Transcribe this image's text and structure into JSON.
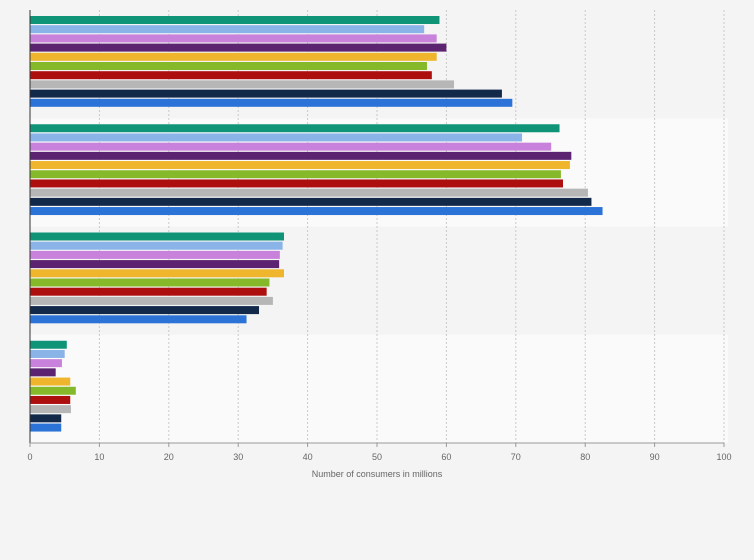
{
  "chart_data": {
    "type": "bar",
    "orientation": "horizontal",
    "xlabel": "Number of consumers in millions",
    "ylabel": "",
    "xlim": [
      0,
      100
    ],
    "xticks": [
      0,
      10,
      20,
      30,
      40,
      50,
      60,
      70,
      80,
      90,
      100
    ],
    "grid": true,
    "categories": [
      "",
      "",
      "",
      ""
    ],
    "series": [
      {
        "color": "#0f9478",
        "values": [
          59.0,
          76.3,
          36.6,
          5.3
        ]
      },
      {
        "color": "#8ab3e8",
        "values": [
          56.8,
          70.9,
          36.4,
          5.0
        ]
      },
      {
        "color": "#c882db",
        "values": [
          58.6,
          75.1,
          36.0,
          4.6
        ]
      },
      {
        "color": "#5c2370",
        "values": [
          60.0,
          78.0,
          35.9,
          3.7
        ]
      },
      {
        "color": "#efb52c",
        "values": [
          58.6,
          77.8,
          36.6,
          5.8
        ]
      },
      {
        "color": "#85b929",
        "values": [
          57.2,
          76.5,
          34.5,
          6.6
        ]
      },
      {
        "color": "#ad0f0f",
        "values": [
          57.9,
          76.8,
          34.1,
          5.8
        ]
      },
      {
        "color": "#b6b6b6",
        "values": [
          61.1,
          80.4,
          35.0,
          5.9
        ]
      },
      {
        "color": "#12294a",
        "values": [
          68.0,
          80.9,
          33.0,
          4.5
        ]
      },
      {
        "color": "#2c73d7",
        "values": [
          69.5,
          82.5,
          31.2,
          4.5
        ]
      }
    ]
  }
}
